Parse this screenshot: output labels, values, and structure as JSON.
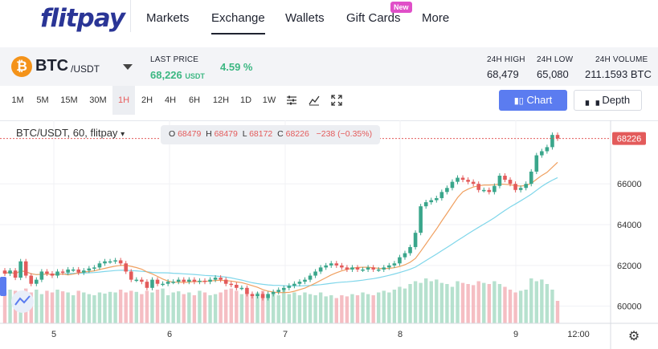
{
  "brand": {
    "logo_text": "flitpay",
    "color": "#2a3596"
  },
  "nav": {
    "items": [
      {
        "label": "Markets"
      },
      {
        "label": "Exchange"
      },
      {
        "label": "Wallets"
      },
      {
        "label": "Gift Cards"
      },
      {
        "label": "More"
      }
    ],
    "active": "Exchange",
    "gift_badge": "New"
  },
  "ticker": {
    "coin_icon": "bitcoin-icon",
    "base": "BTC",
    "quote": "/USDT",
    "last_price_label": "LAST PRICE",
    "last_price": "68,226",
    "last_price_unit": "USDT",
    "change": "4.59 %",
    "high_label": "24H HIGH",
    "high": "68,479",
    "low_label": "24H LOW",
    "low": "65,080",
    "volume_label": "24H VOLUME",
    "volume": "211.1593 BTC"
  },
  "toolbar": {
    "timeframes": [
      "1M",
      "5M",
      "15M",
      "30M",
      "1H",
      "2H",
      "4H",
      "6H",
      "12H",
      "1D",
      "1W"
    ],
    "active_timeframe": "1H",
    "tools": [
      "settings-sliders-icon",
      "line-chart-icon",
      "fullscreen-icon"
    ],
    "chart_button": "Chart",
    "depth_button": "Depth"
  },
  "legend": {
    "symbol": "BTC/USDT, 60, flitpay",
    "o_label": "O",
    "o": "68479",
    "h_label": "H",
    "h": "68479",
    "l_label": "L",
    "l": "68172",
    "c_label": "C",
    "c": "68226",
    "change": "−238 (−0.35%)"
  },
  "colors": {
    "up": "#3aa68b",
    "down": "#e35b5b",
    "accent": "#5b7cf0",
    "ma_fast": "#f0a060",
    "ma_slow": "#7fd6ea"
  },
  "chart_data": {
    "type": "candlestick",
    "x_ticks": [
      "5",
      "6",
      "7",
      "8",
      "9",
      "12:00"
    ],
    "y_ticks": [
      60000,
      62000,
      64000,
      66000
    ],
    "ylim": [
      59200,
      68800
    ],
    "last_price_tag": "68226",
    "last_price": 68226,
    "close": [
      61600,
      61750,
      61400,
      62200,
      61500,
      61100,
      61300,
      61700,
      61600,
      61500,
      61700,
      61650,
      61800,
      61800,
      61650,
      61750,
      61850,
      61900,
      62100,
      62200,
      62200,
      62250,
      62100,
      61700,
      61300,
      61300,
      61200,
      60900,
      61300,
      61100,
      61100,
      61200,
      61200,
      61300,
      61200,
      61300,
      61200,
      61250,
      61200,
      61300,
      61400,
      61300,
      61100,
      61050,
      60900,
      60900,
      60600,
      60500,
      60600,
      60400,
      60600,
      60700,
      60800,
      60900,
      61000,
      61100,
      61200,
      61300,
      61500,
      61700,
      61900,
      62000,
      62100,
      62000,
      61900,
      61800,
      61900,
      61800,
      61800,
      61900,
      61800,
      61800,
      61900,
      62000,
      62100,
      62400,
      62600,
      62900,
      63600,
      64900,
      65100,
      65200,
      65300,
      65600,
      65800,
      66100,
      66300,
      66200,
      66100,
      66000,
      65700,
      65700,
      65600,
      65900,
      66400,
      66200,
      66000,
      65700,
      65800,
      66000,
      66600,
      67400,
      67600,
      67800,
      68400,
      68226
    ],
    "volume_rel": [
      0.55,
      0.6,
      0.58,
      0.5,
      0.62,
      0.55,
      0.6,
      0.52,
      0.58,
      0.55,
      0.6,
      0.57,
      0.55,
      0.5,
      0.58,
      0.55,
      0.52,
      0.5,
      0.55,
      0.53,
      0.56,
      0.55,
      0.6,
      0.55,
      0.58,
      0.56,
      0.52,
      0.58,
      0.55,
      0.6,
      0.62,
      0.5,
      0.55,
      0.57,
      0.52,
      0.55,
      0.5,
      0.58,
      0.55,
      0.5,
      0.52,
      0.55,
      0.6,
      0.62,
      0.58,
      0.52,
      0.55,
      0.5,
      0.55,
      0.58,
      0.52,
      0.55,
      0.5,
      0.6,
      0.52,
      0.55,
      0.5,
      0.55,
      0.52,
      0.5,
      0.55,
      0.48,
      0.5,
      0.45,
      0.5,
      0.48,
      0.52,
      0.5,
      0.55,
      0.52,
      0.5,
      0.55,
      0.58,
      0.55,
      0.6,
      0.65,
      0.62,
      0.7,
      0.75,
      0.72,
      0.8,
      0.75,
      0.78,
      0.72,
      0.7,
      0.65,
      0.75,
      0.72,
      0.7,
      0.68,
      0.75,
      0.72,
      0.7,
      0.75,
      0.7,
      0.65,
      0.6,
      0.55,
      0.58,
      0.6,
      0.8,
      0.75,
      0.78,
      0.7,
      0.6,
      0.4
    ]
  }
}
